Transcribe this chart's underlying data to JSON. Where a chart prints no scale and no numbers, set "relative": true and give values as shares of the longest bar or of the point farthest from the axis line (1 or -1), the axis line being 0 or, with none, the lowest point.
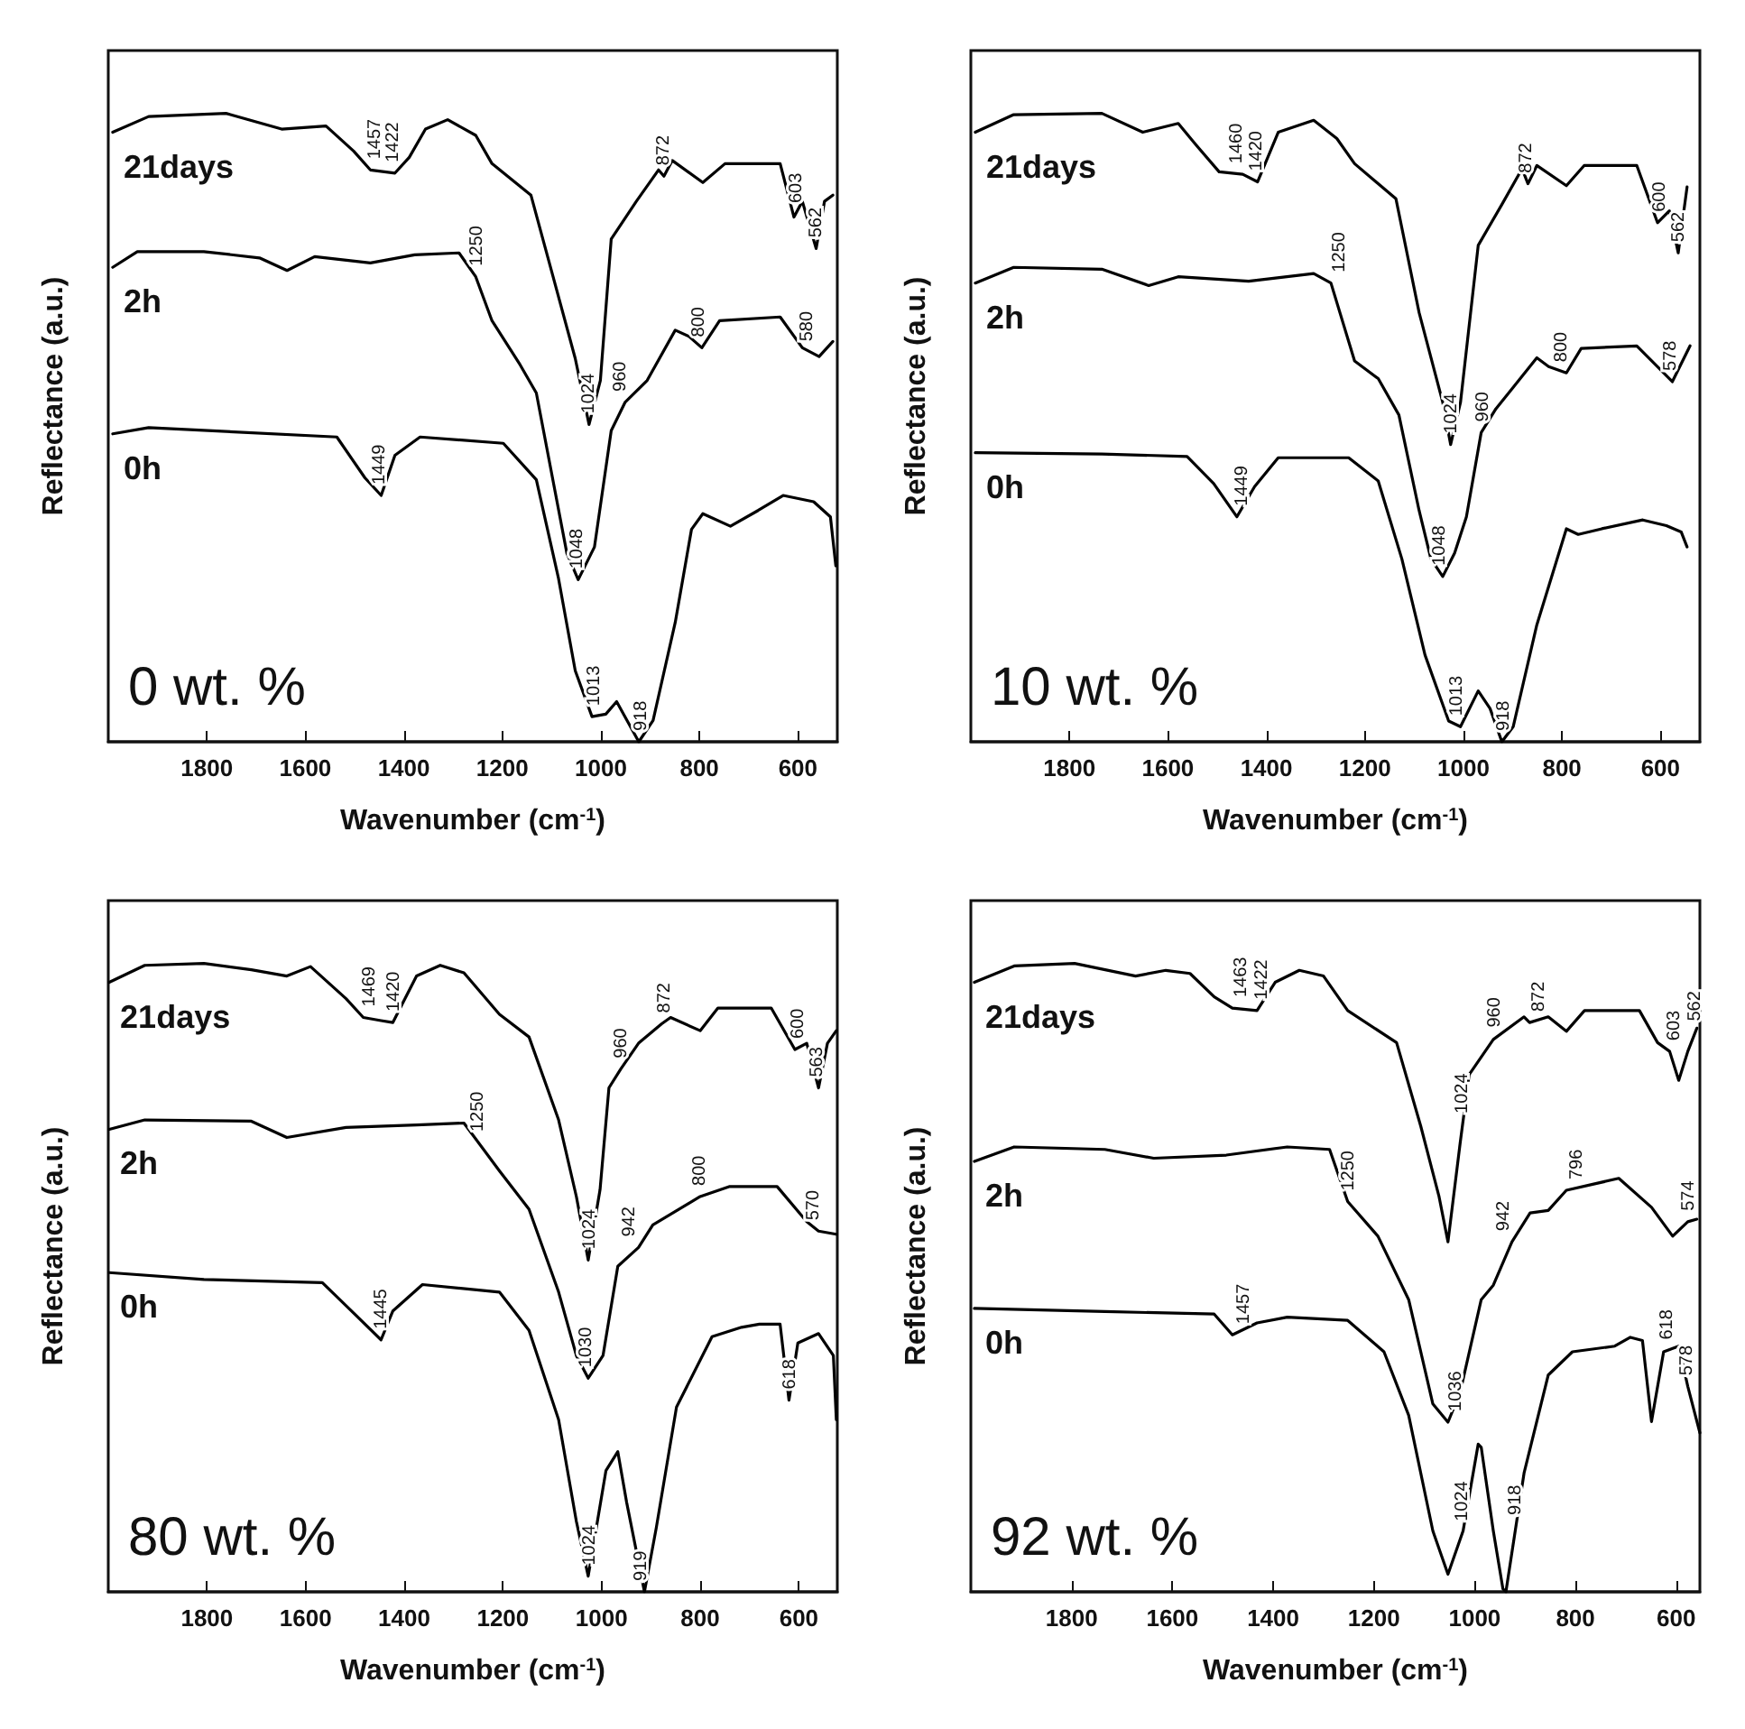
{
  "chart_data": [
    {
      "type": "line",
      "title": "0 wt. %",
      "xlabel": "Wavenumber (cm$^{-1}$)",
      "ylabel": "Reflectance (a.u.)",
      "relative": true,
      "grid": false,
      "legend": false,
      "xlim": [
        2000,
        520
      ],
      "xticks": [
        1800,
        1600,
        1400,
        1200,
        1000,
        800,
        600
      ],
      "series": [
        {
          "name": "21days",
          "color": "#000000",
          "x": [
            1991,
            1918,
            1761,
            1648,
            1558,
            1502,
            1468,
            1418,
            1389,
            1356,
            1311,
            1254,
            1221,
            1142,
            1097,
            1052,
            1024,
            1001,
            979,
            928,
            883,
            872,
            855,
            793,
            748,
            636,
            608,
            591,
            563,
            546,
            529
          ],
          "values": [
            0.97,
            0.995,
            1.0,
            0.975,
            0.98,
            0.94,
            0.91,
            0.905,
            0.93,
            0.975,
            0.99,
            0.965,
            0.92,
            0.87,
            0.74,
            0.61,
            0.505,
            0.575,
            0.8,
            0.86,
            0.91,
            0.9,
            0.925,
            0.89,
            0.92,
            0.92,
            0.835,
            0.86,
            0.785,
            0.86,
            0.87
          ]
        },
        {
          "name": "2h",
          "color": "#000000",
          "x": [
            1991,
            1941,
            1806,
            1693,
            1637,
            1581,
            1468,
            1378,
            1288,
            1254,
            1221,
            1164,
            1131,
            1097,
            1069,
            1046,
            1013,
            979,
            951,
            906,
            849,
            821,
            795,
            759,
            636,
            591,
            557,
            529
          ],
          "values": [
            0.755,
            0.78,
            0.78,
            0.77,
            0.75,
            0.772,
            0.762,
            0.775,
            0.778,
            0.74,
            0.67,
            0.6,
            0.555,
            0.415,
            0.3,
            0.258,
            0.31,
            0.495,
            0.54,
            0.575,
            0.655,
            0.645,
            0.627,
            0.67,
            0.676,
            0.627,
            0.613,
            0.637
          ]
        },
        {
          "name": "0h",
          "color": "#000000",
          "x": [
            1991,
            1918,
            1536,
            1479,
            1446,
            1418,
            1367,
            1198,
            1131,
            1086,
            1052,
            1018,
            990,
            968,
            923,
            894,
            849,
            816,
            793,
            737,
            681,
            630,
            568,
            534,
            523
          ],
          "values": [
            0.49,
            0.5,
            0.485,
            0.42,
            0.392,
            0.456,
            0.485,
            0.475,
            0.417,
            0.26,
            0.113,
            0.04,
            0.044,
            0.064,
            0.0,
            0.034,
            0.19,
            0.338,
            0.363,
            0.343,
            0.368,
            0.392,
            0.382,
            0.358,
            0.28
          ]
        }
      ],
      "annotations": [
        {
          "text": "1457",
          "x": 1457,
          "y": 0.91
        },
        {
          "text": "1422",
          "x": 1422,
          "y": 0.905
        },
        {
          "text": "872",
          "x": 872,
          "y": 0.9
        },
        {
          "text": "603",
          "x": 603,
          "y": 0.84
        },
        {
          "text": "562",
          "x": 562,
          "y": 0.785
        },
        {
          "text": "1250",
          "x": 1250,
          "y": 0.74
        },
        {
          "text": "1024",
          "x": 1024,
          "y": 0.505
        },
        {
          "text": "960",
          "x": 960,
          "y": 0.54
        },
        {
          "text": "800",
          "x": 800,
          "y": 0.627
        },
        {
          "text": "580",
          "x": 580,
          "y": 0.62
        },
        {
          "text": "1449",
          "x": 1449,
          "y": 0.392
        },
        {
          "text": "1048",
          "x": 1048,
          "y": 0.258
        },
        {
          "text": "1013",
          "x": 1013,
          "y": 0.04
        },
        {
          "text": "918",
          "x": 918,
          "y": 0.0
        }
      ]
    },
    {
      "type": "line",
      "title": "10 wt. %",
      "xlabel": "Wavenumber (cm$^{-1}$)",
      "ylabel": "Reflectance (a.u.)",
      "relative": true,
      "grid": false,
      "legend": false,
      "xlim": [
        2000,
        520
      ],
      "xticks": [
        1800,
        1600,
        1400,
        1200,
        1000,
        800,
        600
      ],
      "series": [
        {
          "name": "21days",
          "color": "#000000",
          "x": [
            1991,
            1913,
            1734,
            1651,
            1579,
            1543,
            1496,
            1448,
            1418,
            1376,
            1304,
            1257,
            1221,
            1137,
            1090,
            1042,
            1026,
            1006,
            970,
            922,
            881,
            869,
            851,
            791,
            755,
            648,
            606,
            582,
            564,
            546
          ],
          "values": [
            0.97,
            0.998,
            1.0,
            0.97,
            0.984,
            0.95,
            0.907,
            0.903,
            0.891,
            0.97,
            0.989,
            0.96,
            0.92,
            0.864,
            0.683,
            0.54,
            0.473,
            0.54,
            0.79,
            0.855,
            0.912,
            0.888,
            0.917,
            0.885,
            0.917,
            0.917,
            0.826,
            0.845,
            0.778,
            0.883
          ]
        },
        {
          "name": "2h",
          "color": "#000000",
          "x": [
            1991,
            1913,
            1734,
            1639,
            1579,
            1436,
            1304,
            1269,
            1221,
            1173,
            1131,
            1090,
            1066,
            1042,
            1018,
            994,
            964,
            934,
            899,
            851,
            827,
            791,
            761,
            648,
            606,
            576,
            540
          ],
          "values": [
            0.73,
            0.755,
            0.752,
            0.726,
            0.74,
            0.733,
            0.745,
            0.73,
            0.606,
            0.578,
            0.52,
            0.368,
            0.291,
            0.263,
            0.3,
            0.358,
            0.492,
            0.53,
            0.564,
            0.611,
            0.597,
            0.587,
            0.626,
            0.63,
            0.597,
            0.573,
            0.63
          ]
        },
        {
          "name": "0h",
          "color": "#000000",
          "x": [
            1991,
            1734,
            1561,
            1507,
            1460,
            1424,
            1376,
            1233,
            1173,
            1125,
            1078,
            1030,
            1006,
            970,
            946,
            922,
            899,
            851,
            791,
            767,
            719,
            636,
            588,
            558,
            546
          ],
          "values": [
            0.46,
            0.458,
            0.454,
            0.411,
            0.358,
            0.406,
            0.452,
            0.452,
            0.415,
            0.291,
            0.138,
            0.033,
            0.024,
            0.081,
            0.053,
            0.0,
            0.024,
            0.186,
            0.339,
            0.33,
            0.339,
            0.353,
            0.344,
            0.334,
            0.31
          ]
        }
      ],
      "annotations": [
        {
          "text": "1460",
          "x": 1460,
          "y": 0.903
        },
        {
          "text": "1420",
          "x": 1420,
          "y": 0.891
        },
        {
          "text": "872",
          "x": 872,
          "y": 0.888
        },
        {
          "text": "600",
          "x": 600,
          "y": 0.826
        },
        {
          "text": "562",
          "x": 562,
          "y": 0.778
        },
        {
          "text": "1250",
          "x": 1250,
          "y": 0.73
        },
        {
          "text": "1024",
          "x": 1024,
          "y": 0.473
        },
        {
          "text": "960",
          "x": 960,
          "y": 0.492
        },
        {
          "text": "800",
          "x": 800,
          "y": 0.587
        },
        {
          "text": "578",
          "x": 578,
          "y": 0.573
        },
        {
          "text": "1449",
          "x": 1449,
          "y": 0.358
        },
        {
          "text": "1048",
          "x": 1048,
          "y": 0.263
        },
        {
          "text": "1013",
          "x": 1013,
          "y": 0.024
        },
        {
          "text": "918",
          "x": 918,
          "y": 0.0
        }
      ]
    },
    {
      "type": "line",
      "title": "80 wt. %",
      "xlabel": "Wavenumber (cm$^{-1}$)",
      "ylabel": "Reflectance (a.u.)",
      "relative": true,
      "grid": false,
      "legend": false,
      "xlim": [
        2000,
        522
      ],
      "xticks": [
        1800,
        1600,
        1400,
        1200,
        1000,
        800,
        600
      ],
      "series": [
        {
          "name": "21days",
          "color": "#000000",
          "x": [
            1998,
            1926,
            1806,
            1710,
            1638,
            1590,
            1518,
            1483,
            1447,
            1423,
            1375,
            1327,
            1279,
            1207,
            1147,
            1087,
            1051,
            1027,
            1003,
            985,
            961,
            925,
            878,
            860,
            800,
            764,
            656,
            608,
            584,
            560,
            542,
            524
          ],
          "values": [
            0.97,
            0.997,
            1.0,
            0.99,
            0.98,
            0.995,
            0.944,
            0.914,
            0.909,
            0.906,
            0.98,
            0.997,
            0.985,
            0.919,
            0.883,
            0.751,
            0.629,
            0.528,
            0.64,
            0.802,
            0.832,
            0.873,
            0.904,
            0.914,
            0.893,
            0.929,
            0.929,
            0.863,
            0.873,
            0.802,
            0.873,
            0.893
          ]
        },
        {
          "name": "2h",
          "color": "#000000",
          "x": [
            1998,
            1926,
            1710,
            1638,
            1518,
            1375,
            1279,
            1207,
            1147,
            1087,
            1051,
            1027,
            997,
            967,
            925,
            896,
            800,
            740,
            644,
            584,
            560,
            524
          ],
          "values": [
            0.736,
            0.751,
            0.749,
            0.723,
            0.739,
            0.743,
            0.746,
            0.67,
            0.609,
            0.477,
            0.376,
            0.34,
            0.376,
            0.518,
            0.548,
            0.584,
            0.629,
            0.645,
            0.645,
            0.589,
            0.574,
            0.569
          ]
        },
        {
          "name": "0h",
          "color": "#000000",
          "x": [
            1998,
            1806,
            1566,
            1494,
            1447,
            1423,
            1363,
            1207,
            1147,
            1087,
            1051,
            1027,
            991,
            967,
            949,
            913,
            889,
            848,
            776,
            716,
            680,
            638,
            620,
            602,
            560,
            530,
            524
          ],
          "values": [
            0.508,
            0.497,
            0.492,
            0.437,
            0.401,
            0.447,
            0.489,
            0.477,
            0.416,
            0.274,
            0.112,
            0.025,
            0.193,
            0.223,
            0.142,
            0.0,
            0.102,
            0.294,
            0.406,
            0.421,
            0.426,
            0.426,
            0.305,
            0.396,
            0.411,
            0.376,
            0.274
          ]
        }
      ],
      "annotations": [
        {
          "text": "1469",
          "x": 1469,
          "y": 0.914
        },
        {
          "text": "1420",
          "x": 1420,
          "y": 0.906
        },
        {
          "text": "960",
          "x": 960,
          "y": 0.832
        },
        {
          "text": "872",
          "x": 872,
          "y": 0.904
        },
        {
          "text": "600",
          "x": 600,
          "y": 0.863
        },
        {
          "text": "563",
          "x": 563,
          "y": 0.802
        },
        {
          "text": "1250",
          "x": 1250,
          "y": 0.715
        },
        {
          "text": "1024",
          "x": 1024,
          "y": 0.528
        },
        {
          "text": "942",
          "x": 942,
          "y": 0.548
        },
        {
          "text": "800",
          "x": 800,
          "y": 0.629
        },
        {
          "text": "570",
          "x": 570,
          "y": 0.574
        },
        {
          "text": "1445",
          "x": 1445,
          "y": 0.401
        },
        {
          "text": "1030",
          "x": 1030,
          "y": 0.34
        },
        {
          "text": "618",
          "x": 618,
          "y": 0.305
        },
        {
          "text": "1024",
          "x": 1024,
          "y": 0.025
        },
        {
          "text": "919",
          "x": 919,
          "y": 0.0
        }
      ]
    },
    {
      "type": "line",
      "title": "92 wt. %",
      "xlabel": "Wavenumber (cm$^{-1}$)",
      "ylabel": "Reflectance (a.u.)",
      "relative": true,
      "grid": false,
      "legend": false,
      "xlim": [
        2000,
        553
      ],
      "xticks": [
        1800,
        1600,
        1400,
        1200,
        1000,
        800,
        600
      ],
      "series": [
        {
          "name": "21days",
          "color": "#000000",
          "x": [
            1993,
            1914,
            1794,
            1673,
            1613,
            1565,
            1517,
            1481,
            1432,
            1396,
            1348,
            1300,
            1252,
            1155,
            1107,
            1071,
            1053,
            1029,
            1011,
            963,
            902,
            891,
            854,
            818,
            782,
            673,
            637,
            613,
            595,
            577,
            559
          ],
          "values": [
            0.97,
            0.996,
            1.0,
            0.98,
            0.989,
            0.984,
            0.947,
            0.929,
            0.925,
            0.97,
            0.989,
            0.98,
            0.925,
            0.874,
            0.741,
            0.63,
            0.557,
            0.713,
            0.823,
            0.879,
            0.915,
            0.906,
            0.915,
            0.892,
            0.925,
            0.925,
            0.874,
            0.86,
            0.814,
            0.86,
            0.897
          ]
        },
        {
          "name": "2h",
          "color": "#000000",
          "x": [
            1993,
            1914,
            1734,
            1637,
            1493,
            1372,
            1288,
            1252,
            1192,
            1131,
            1083,
            1053,
            1029,
            987,
            963,
            926,
            890,
            854,
            818,
            714,
            649,
            607,
            577,
            559
          ],
          "values": [
            0.685,
            0.708,
            0.704,
            0.69,
            0.695,
            0.708,
            0.704,
            0.621,
            0.566,
            0.465,
            0.299,
            0.27,
            0.317,
            0.465,
            0.488,
            0.557,
            0.603,
            0.607,
            0.639,
            0.658,
            0.612,
            0.566,
            0.589,
            0.593
          ]
        },
        {
          "name": "0h",
          "color": "#000000",
          "x": [
            1993,
            1734,
            1517,
            1481,
            1432,
            1372,
            1252,
            1180,
            1131,
            1083,
            1053,
            1023,
            993,
            987,
            963,
            944,
            938,
            902,
            854,
            806,
            722,
            691,
            667,
            649,
            625,
            595,
            577,
            553
          ],
          "values": [
            0.451,
            0.446,
            0.442,
            0.409,
            0.428,
            0.437,
            0.432,
            0.382,
            0.281,
            0.097,
            0.028,
            0.097,
            0.235,
            0.23,
            0.097,
            0.005,
            0.0,
            0.189,
            0.345,
            0.382,
            0.391,
            0.405,
            0.4,
            0.271,
            0.382,
            0.391,
            0.327,
            0.253
          ]
        }
      ],
      "annotations": [
        {
          "text": "1463",
          "x": 1463,
          "y": 0.929
        },
        {
          "text": "1422",
          "x": 1422,
          "y": 0.925
        },
        {
          "text": "960",
          "x": 960,
          "y": 0.881
        },
        {
          "text": "872",
          "x": 872,
          "y": 0.906
        },
        {
          "text": "603",
          "x": 603,
          "y": 0.86
        },
        {
          "text": "562",
          "x": 562,
          "y": 0.891
        },
        {
          "text": "1250",
          "x": 1250,
          "y": 0.621
        },
        {
          "text": "1024",
          "x": 1024,
          "y": 0.744
        },
        {
          "text": "942",
          "x": 942,
          "y": 0.557
        },
        {
          "text": "796",
          "x": 796,
          "y": 0.639
        },
        {
          "text": "574",
          "x": 574,
          "y": 0.589
        },
        {
          "text": "1457",
          "x": 1457,
          "y": 0.409
        },
        {
          "text": "1036",
          "x": 1036,
          "y": 0.27
        },
        {
          "text": "618",
          "x": 618,
          "y": 0.384
        },
        {
          "text": "578",
          "x": 578,
          "y": 0.327
        },
        {
          "text": "1024",
          "x": 1024,
          "y": 0.095
        },
        {
          "text": "918",
          "x": 918,
          "y": 0.105
        }
      ]
    }
  ]
}
